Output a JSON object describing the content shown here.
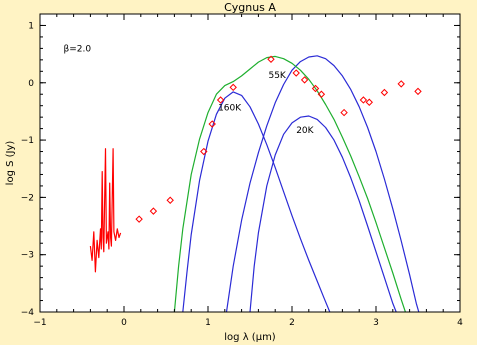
{
  "chart_data": {
    "type": "line",
    "title": "Cygnus A",
    "xlabel": "log λ (μm)",
    "ylabel": "log S (Jy)",
    "xlim": [
      -1,
      4
    ],
    "ylim": [
      -4,
      1.2
    ],
    "grid": false,
    "x_ticks": [
      -1,
      0,
      1,
      2,
      3,
      4
    ],
    "y_ticks": [
      -4,
      -3,
      -2,
      -1,
      0,
      1
    ],
    "x_tick_labels": [
      "−1",
      "0",
      "1",
      "2",
      "3",
      "4"
    ],
    "y_tick_labels": [
      "−4",
      "−3",
      "−2",
      "−1",
      "0",
      "1"
    ],
    "annotations": [
      {
        "text": "β=2.0",
        "x": -0.72,
        "y": 0.55
      },
      {
        "text": "55K",
        "x": 1.72,
        "y": 0.08
      },
      {
        "text": "160K",
        "x": 1.12,
        "y": -0.48
      },
      {
        "text": "20K",
        "x": 2.05,
        "y": -0.88
      }
    ],
    "series": [
      {
        "kind": "line",
        "color": "#2b2bd6",
        "points": [
          [
            1.22,
            -4.0
          ],
          [
            1.3,
            -3.2
          ],
          [
            1.4,
            -2.4
          ],
          [
            1.5,
            -1.75
          ],
          [
            1.6,
            -1.22
          ],
          [
            1.7,
            -0.75
          ],
          [
            1.8,
            -0.35
          ],
          [
            1.9,
            -0.03
          ],
          [
            2.0,
            0.22
          ],
          [
            2.1,
            0.37
          ],
          [
            2.2,
            0.45
          ],
          [
            2.3,
            0.47
          ],
          [
            2.4,
            0.42
          ],
          [
            2.5,
            0.3
          ],
          [
            2.6,
            0.12
          ],
          [
            2.7,
            -0.12
          ],
          [
            2.8,
            -0.42
          ],
          [
            2.9,
            -0.78
          ],
          [
            3.0,
            -1.2
          ],
          [
            3.1,
            -1.68
          ],
          [
            3.2,
            -2.2
          ],
          [
            3.3,
            -2.76
          ],
          [
            3.4,
            -3.35
          ],
          [
            3.48,
            -3.85
          ],
          [
            3.51,
            -4.0
          ]
        ]
      },
      {
        "kind": "line",
        "color": "#2b2bd6",
        "points": [
          [
            0.7,
            -4.0
          ],
          [
            0.75,
            -3.3
          ],
          [
            0.8,
            -2.65
          ],
          [
            0.9,
            -1.7
          ],
          [
            1.0,
            -1.02
          ],
          [
            1.1,
            -0.55
          ],
          [
            1.2,
            -0.27
          ],
          [
            1.3,
            -0.16
          ],
          [
            1.4,
            -0.22
          ],
          [
            1.5,
            -0.42
          ],
          [
            1.6,
            -0.72
          ],
          [
            1.7,
            -1.08
          ],
          [
            1.8,
            -1.48
          ],
          [
            1.9,
            -1.9
          ],
          [
            2.0,
            -2.32
          ],
          [
            2.1,
            -2.72
          ],
          [
            2.2,
            -3.1
          ],
          [
            2.3,
            -3.46
          ],
          [
            2.38,
            -3.75
          ],
          [
            2.45,
            -4.0
          ]
        ]
      },
      {
        "kind": "line",
        "color": "#2b2bd6",
        "points": [
          [
            1.5,
            -4.0
          ],
          [
            1.55,
            -3.2
          ],
          [
            1.6,
            -2.62
          ],
          [
            1.7,
            -1.8
          ],
          [
            1.8,
            -1.26
          ],
          [
            1.9,
            -0.9
          ],
          [
            2.0,
            -0.7
          ],
          [
            2.1,
            -0.6
          ],
          [
            2.2,
            -0.58
          ],
          [
            2.3,
            -0.64
          ],
          [
            2.4,
            -0.78
          ],
          [
            2.5,
            -1.0
          ],
          [
            2.6,
            -1.3
          ],
          [
            2.7,
            -1.66
          ],
          [
            2.8,
            -2.06
          ],
          [
            2.9,
            -2.5
          ],
          [
            3.0,
            -2.95
          ],
          [
            3.1,
            -3.4
          ],
          [
            3.2,
            -3.85
          ],
          [
            3.24,
            -4.0
          ]
        ]
      },
      {
        "kind": "line",
        "color": "#1faf2f",
        "points": [
          [
            0.6,
            -4.0
          ],
          [
            0.65,
            -3.2
          ],
          [
            0.7,
            -2.55
          ],
          [
            0.8,
            -1.6
          ],
          [
            0.9,
            -0.98
          ],
          [
            1.0,
            -0.52
          ],
          [
            1.1,
            -0.2
          ],
          [
            1.2,
            -0.05
          ],
          [
            1.3,
            0.02
          ],
          [
            1.4,
            0.12
          ],
          [
            1.5,
            0.24
          ],
          [
            1.6,
            0.36
          ],
          [
            1.7,
            0.44
          ],
          [
            1.8,
            0.46
          ],
          [
            1.9,
            0.42
          ],
          [
            2.0,
            0.34
          ],
          [
            2.1,
            0.22
          ],
          [
            2.2,
            0.06
          ],
          [
            2.3,
            -0.14
          ],
          [
            2.4,
            -0.38
          ],
          [
            2.5,
            -0.64
          ],
          [
            2.6,
            -0.95
          ],
          [
            2.7,
            -1.28
          ],
          [
            2.8,
            -1.64
          ],
          [
            2.9,
            -2.02
          ],
          [
            3.0,
            -2.44
          ],
          [
            3.1,
            -2.88
          ],
          [
            3.2,
            -3.32
          ],
          [
            3.3,
            -3.78
          ],
          [
            3.35,
            -4.0
          ]
        ]
      },
      {
        "kind": "line",
        "color": "#ff0000",
        "points": [
          [
            -0.4,
            -2.85
          ],
          [
            -0.38,
            -3.1
          ],
          [
            -0.36,
            -2.6
          ],
          [
            -0.35,
            -2.95
          ],
          [
            -0.34,
            -3.3
          ],
          [
            -0.32,
            -2.75
          ],
          [
            -0.3,
            -3.05
          ],
          [
            -0.28,
            -2.55
          ],
          [
            -0.27,
            -2.9
          ],
          [
            -0.26,
            -1.55
          ],
          [
            -0.25,
            -2.7
          ],
          [
            -0.24,
            -2.95
          ],
          [
            -0.22,
            -1.15
          ],
          [
            -0.21,
            -2.8
          ],
          [
            -0.19,
            -2.6
          ],
          [
            -0.18,
            -2.9
          ],
          [
            -0.17,
            -1.75
          ],
          [
            -0.16,
            -2.7
          ],
          [
            -0.15,
            -2.85
          ],
          [
            -0.13,
            -1.15
          ],
          [
            -0.12,
            -2.6
          ],
          [
            -0.1,
            -2.75
          ],
          [
            -0.08,
            -2.55
          ],
          [
            -0.06,
            -2.7
          ],
          [
            -0.04,
            -2.62
          ]
        ]
      },
      {
        "kind": "scatter",
        "marker": "diamond",
        "color": "#ff0000",
        "points": [
          [
            0.18,
            -2.38
          ],
          [
            0.35,
            -2.24
          ],
          [
            0.55,
            -2.05
          ],
          [
            0.95,
            -1.2
          ],
          [
            1.05,
            -0.72
          ],
          [
            1.15,
            -0.3
          ],
          [
            1.3,
            -0.08
          ],
          [
            1.75,
            0.41
          ],
          [
            2.05,
            0.17
          ],
          [
            2.15,
            0.05
          ],
          [
            2.28,
            -0.1
          ],
          [
            2.35,
            -0.2
          ],
          [
            2.62,
            -0.52
          ],
          [
            2.85,
            -0.3
          ],
          [
            2.92,
            -0.34
          ],
          [
            3.1,
            -0.17
          ],
          [
            3.3,
            -0.02
          ],
          [
            3.5,
            -0.15
          ]
        ]
      }
    ]
  }
}
